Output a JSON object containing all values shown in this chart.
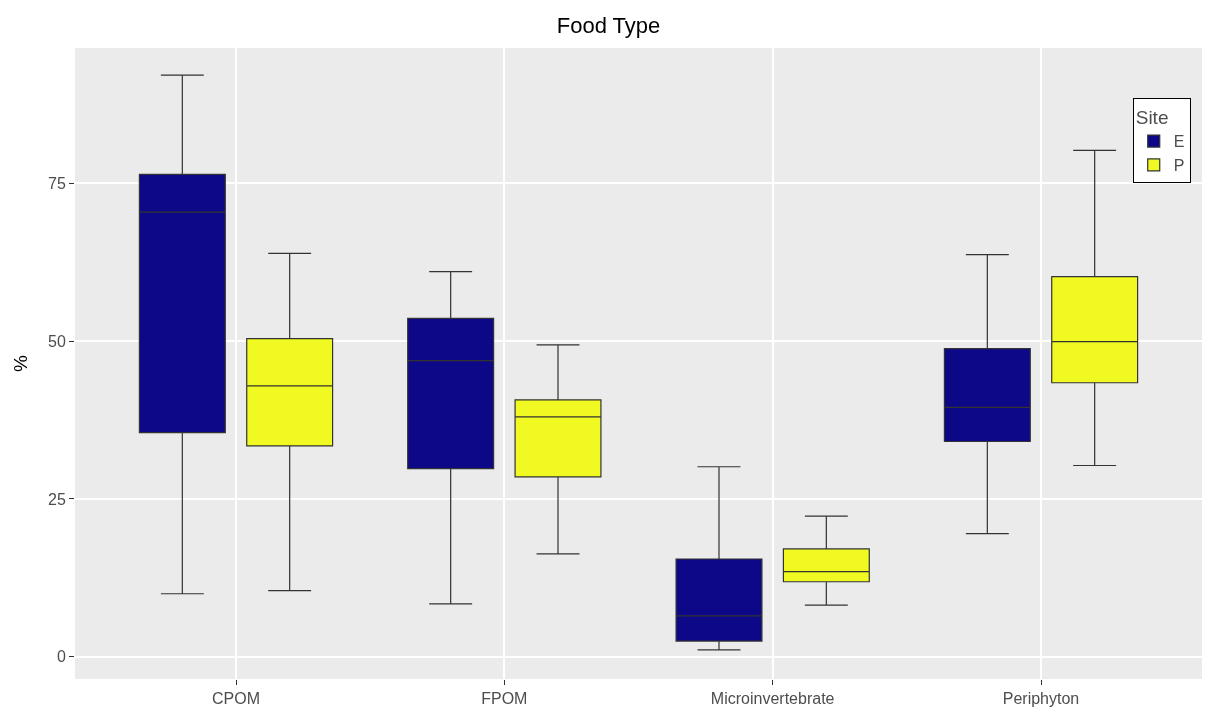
{
  "chart_data": {
    "type": "box",
    "title": "Food Type",
    "ylabel": "%",
    "legend_title": "Site",
    "categories": [
      "CPOM",
      "FPOM",
      "Microinvertebrate",
      "Periphyton"
    ],
    "series": [
      {
        "name": "E",
        "color": "#0d0887",
        "boxes": [
          {
            "low": 10.0,
            "q1": 35.5,
            "median": 70.4,
            "q3": 76.4,
            "high": 92.1
          },
          {
            "low": 8.4,
            "q1": 29.8,
            "median": 46.9,
            "q3": 53.6,
            "high": 61.0
          },
          {
            "low": 1.1,
            "q1": 2.5,
            "median": 6.5,
            "q3": 15.5,
            "high": 30.1
          },
          {
            "low": 19.5,
            "q1": 34.1,
            "median": 39.5,
            "q3": 48.8,
            "high": 63.7
          }
        ]
      },
      {
        "name": "P",
        "color": "#f0f921",
        "boxes": [
          {
            "low": 10.5,
            "q1": 33.4,
            "median": 42.9,
            "q3": 50.4,
            "high": 63.9
          },
          {
            "low": 16.3,
            "q1": 28.5,
            "median": 38.0,
            "q3": 40.7,
            "high": 49.4
          },
          {
            "low": 8.2,
            "q1": 11.9,
            "median": 13.5,
            "q3": 17.1,
            "high": 22.3
          },
          {
            "low": 30.3,
            "q1": 43.4,
            "median": 49.9,
            "q3": 60.2,
            "high": 80.2
          }
        ]
      }
    ],
    "ylim": [
      -3.5,
      96.4
    ],
    "yticks": [
      0,
      25,
      50,
      75
    ],
    "grid": true,
    "legend": "top right"
  }
}
